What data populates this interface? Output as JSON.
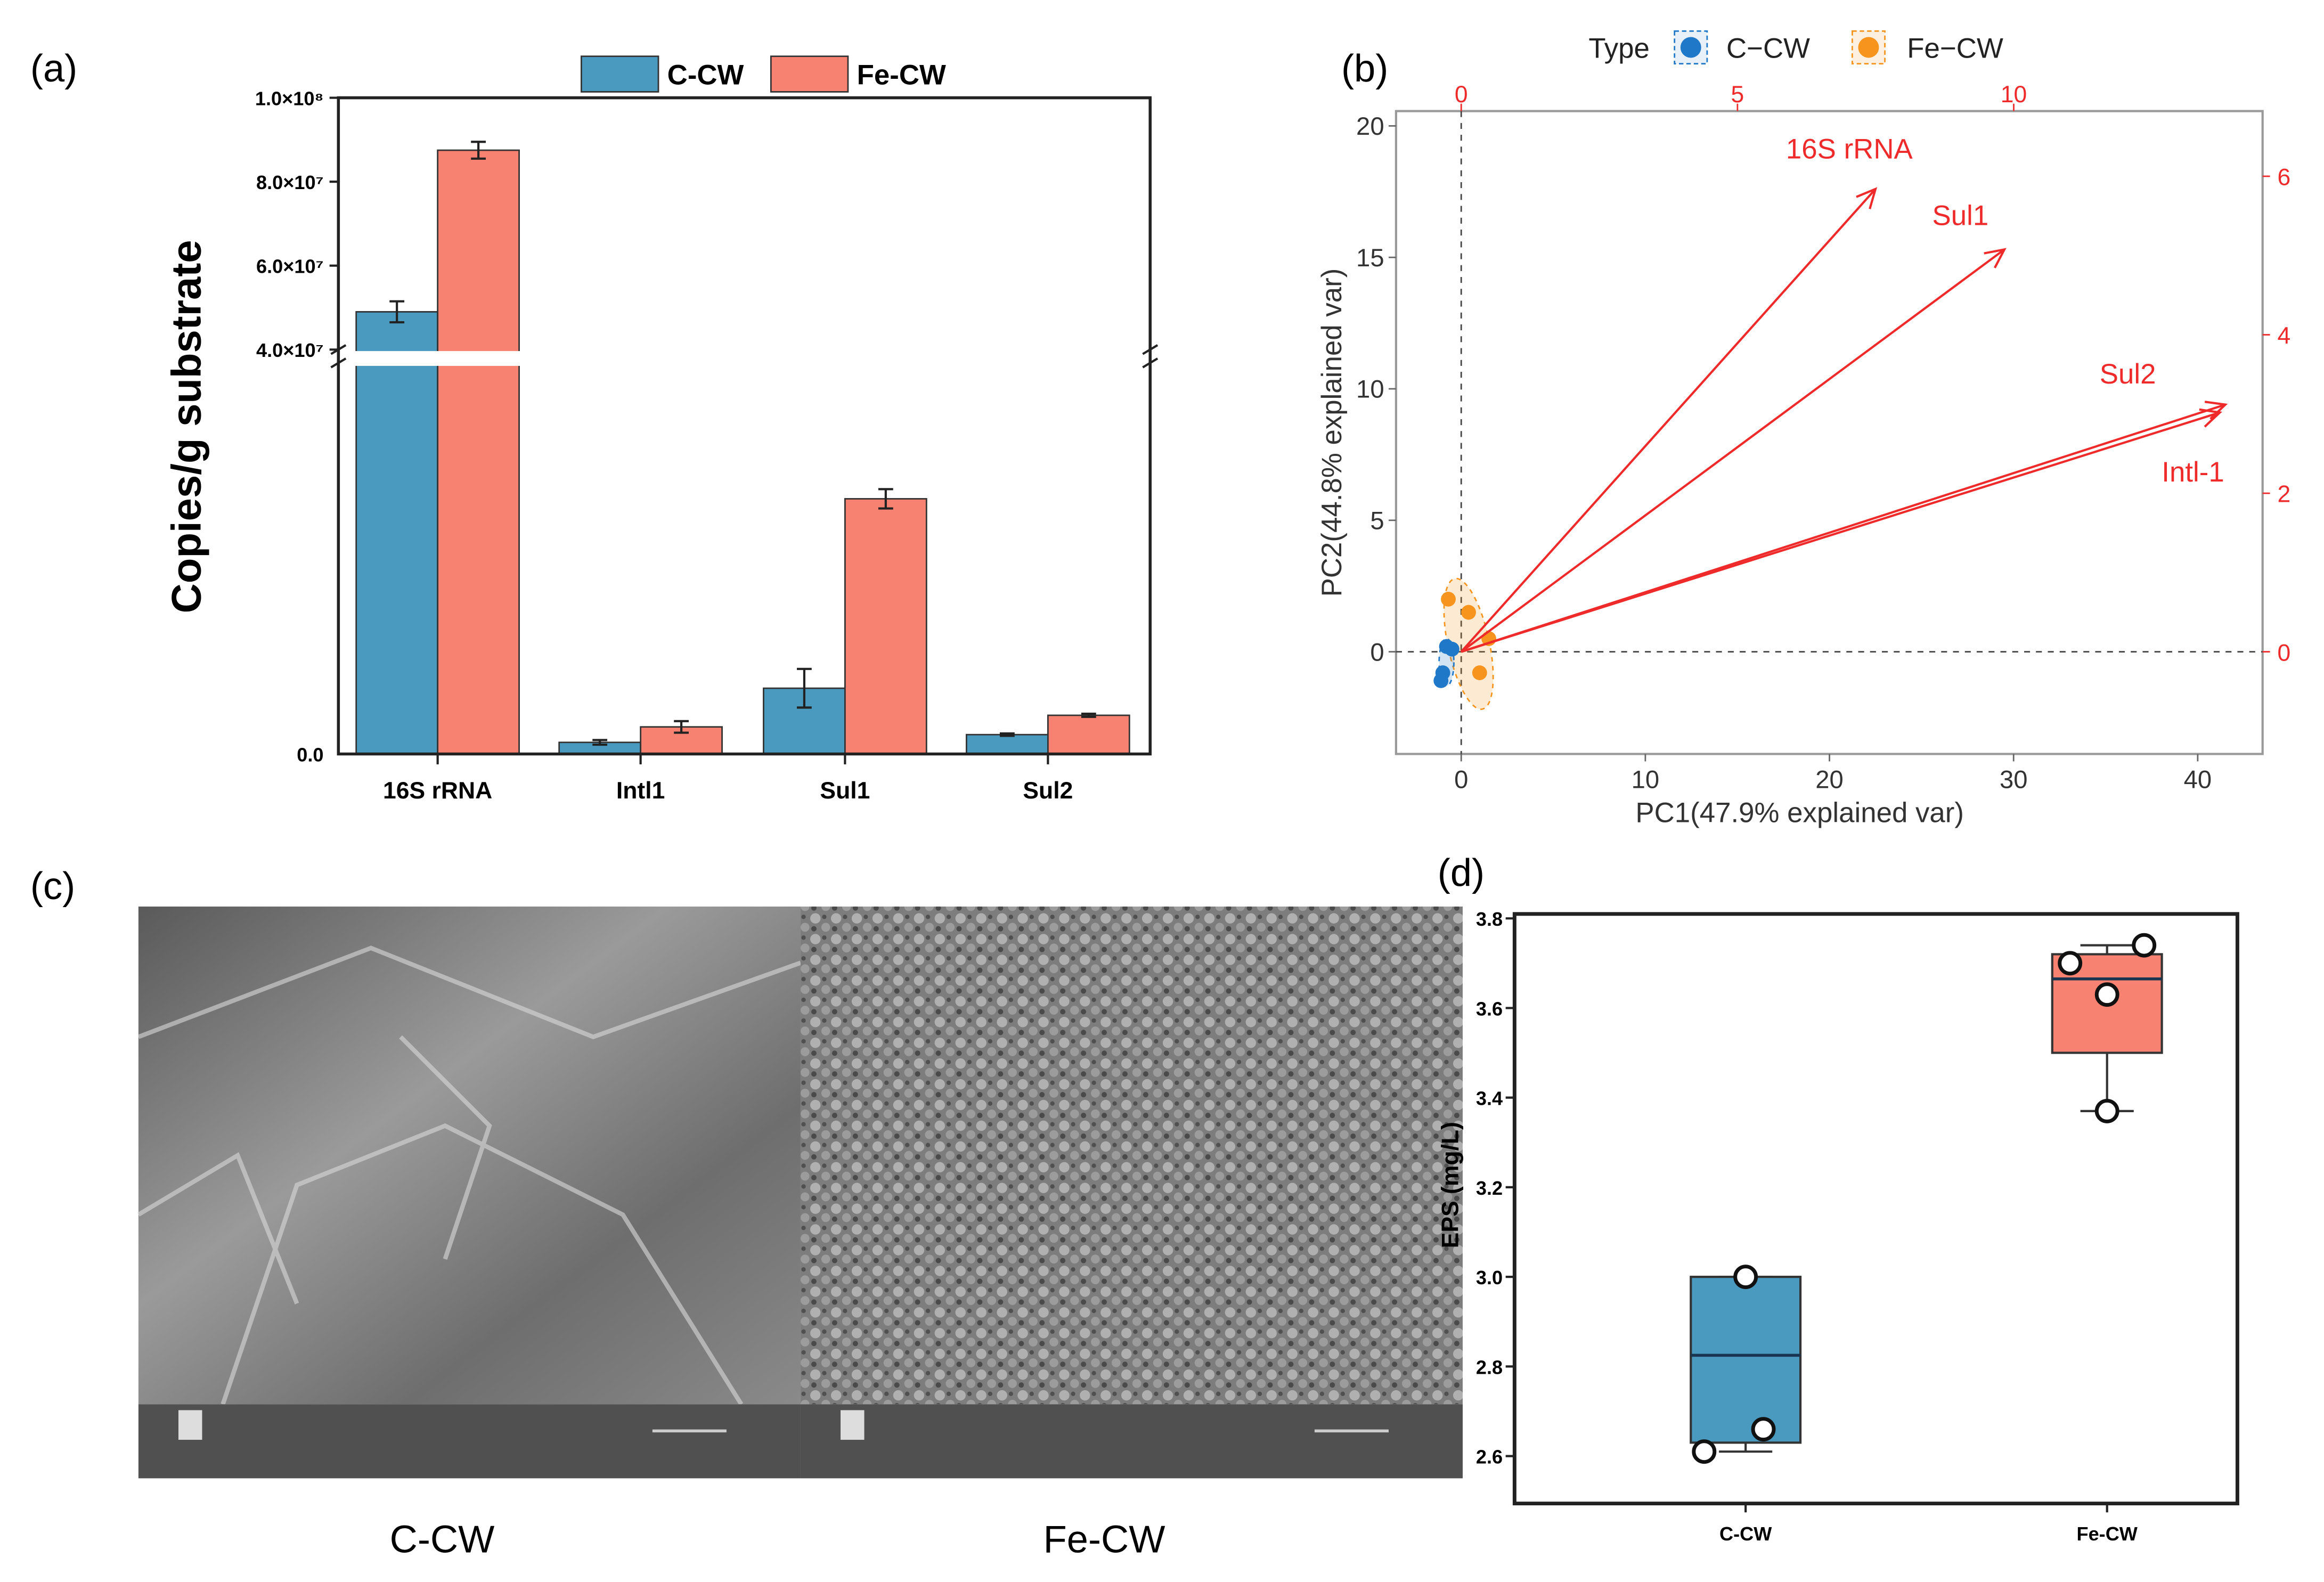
{
  "panel_labels": [
    "(a)",
    "(b)",
    "(c)",
    "(d)"
  ],
  "colors": {
    "c_cw": "#4a9ac0",
    "fe_cw": "#f88272",
    "pca_c": "#1f78c8",
    "pca_fe": "#f7941d",
    "arrow": "#ee2a2a"
  },
  "chart_data": [
    {
      "type": "bar",
      "title": "",
      "ylabel": "Copies/g substrate",
      "categories": [
        "16S rRNA",
        "Intl1",
        "Sul1",
        "Sul2"
      ],
      "legend": [
        "C-CW",
        "Fe-CW"
      ],
      "legend_position": "top",
      "y_break": true,
      "ylim_upper": [
        40000000,
        100000000
      ],
      "ylim_lower_estimated": [
        0,
        10000000
      ],
      "yticks_upper": [
        "4.0×10⁷",
        "6.0×10⁷",
        "8.0×10⁷",
        "1.0×10⁸"
      ],
      "ytick_upper_values": [
        40000000,
        60000000,
        80000000,
        100000000
      ],
      "ytick_zero": "0.0",
      "series": [
        {
          "name": "C-CW",
          "values": [
            49000000,
            300000,
            1700000,
            500000
          ],
          "errors": [
            2500000,
            60000,
            500000,
            30000
          ]
        },
        {
          "name": "Fe-CW",
          "values": [
            87500000,
            700000,
            6600000,
            1000000
          ],
          "errors": [
            2000000,
            150000,
            250000,
            40000
          ]
        }
      ]
    },
    {
      "type": "scatter",
      "subtype": "pca-biplot",
      "xlabel": "PC1(47.9% explained var)",
      "ylabel": "PC2(44.8% explained var)",
      "xlim": [
        -3.5,
        43.5
      ],
      "ylim": [
        -3.8,
        20.5
      ],
      "xticks": [
        0,
        10,
        20,
        30,
        40
      ],
      "yticks": [
        0,
        5,
        10,
        15,
        20
      ],
      "top_ticks": [
        0,
        5,
        10
      ],
      "right_ticks": [
        0,
        2,
        4,
        6
      ],
      "legend_title": "Type",
      "legend": [
        "C−CW",
        "Fe−CW"
      ],
      "legend_position": "top",
      "points": {
        "C-CW": [
          [
            -0.8,
            0.2
          ],
          [
            -0.5,
            0.1
          ],
          [
            -1.0,
            -0.8
          ],
          [
            -1.1,
            -1.1
          ]
        ],
        "Fe-CW": [
          [
            -0.7,
            2.0
          ],
          [
            0.4,
            1.5
          ],
          [
            1.0,
            -0.8
          ],
          [
            1.5,
            0.5
          ]
        ]
      },
      "arrows": [
        {
          "label": "16S rRNA",
          "x": 22.5,
          "y": 17.6
        },
        {
          "label": "Sul1",
          "x": 29.5,
          "y": 15.3
        },
        {
          "label": "Sul2",
          "x": 41.5,
          "y": 9.4
        },
        {
          "label": "Intl-1",
          "x": 41.2,
          "y": 9.1
        }
      ]
    },
    {
      "type": "box",
      "ylabel": "EPS (mg/L)",
      "categories": [
        "C-CW",
        "Fe-CW"
      ],
      "ylim": [
        2.5,
        3.8
      ],
      "yticks": [
        "2.6",
        "2.8",
        "3.0",
        "3.2",
        "3.4",
        "3.6",
        "3.8"
      ],
      "boxes": [
        {
          "name": "C-CW",
          "q1": 2.63,
          "median": 2.825,
          "q3": 3.0,
          "whisker_low": 2.61,
          "whisker_high": 3.0,
          "points": [
            3.0,
            2.66,
            2.61
          ]
        },
        {
          "name": "Fe-CW",
          "q1": 3.5,
          "median": 3.665,
          "q3": 3.72,
          "whisker_low": 3.37,
          "whisker_high": 3.74,
          "points": [
            3.74,
            3.7,
            3.63,
            3.37
          ]
        }
      ]
    }
  ],
  "sem": {
    "labels": [
      "C-CW",
      "Fe-CW"
    ]
  }
}
